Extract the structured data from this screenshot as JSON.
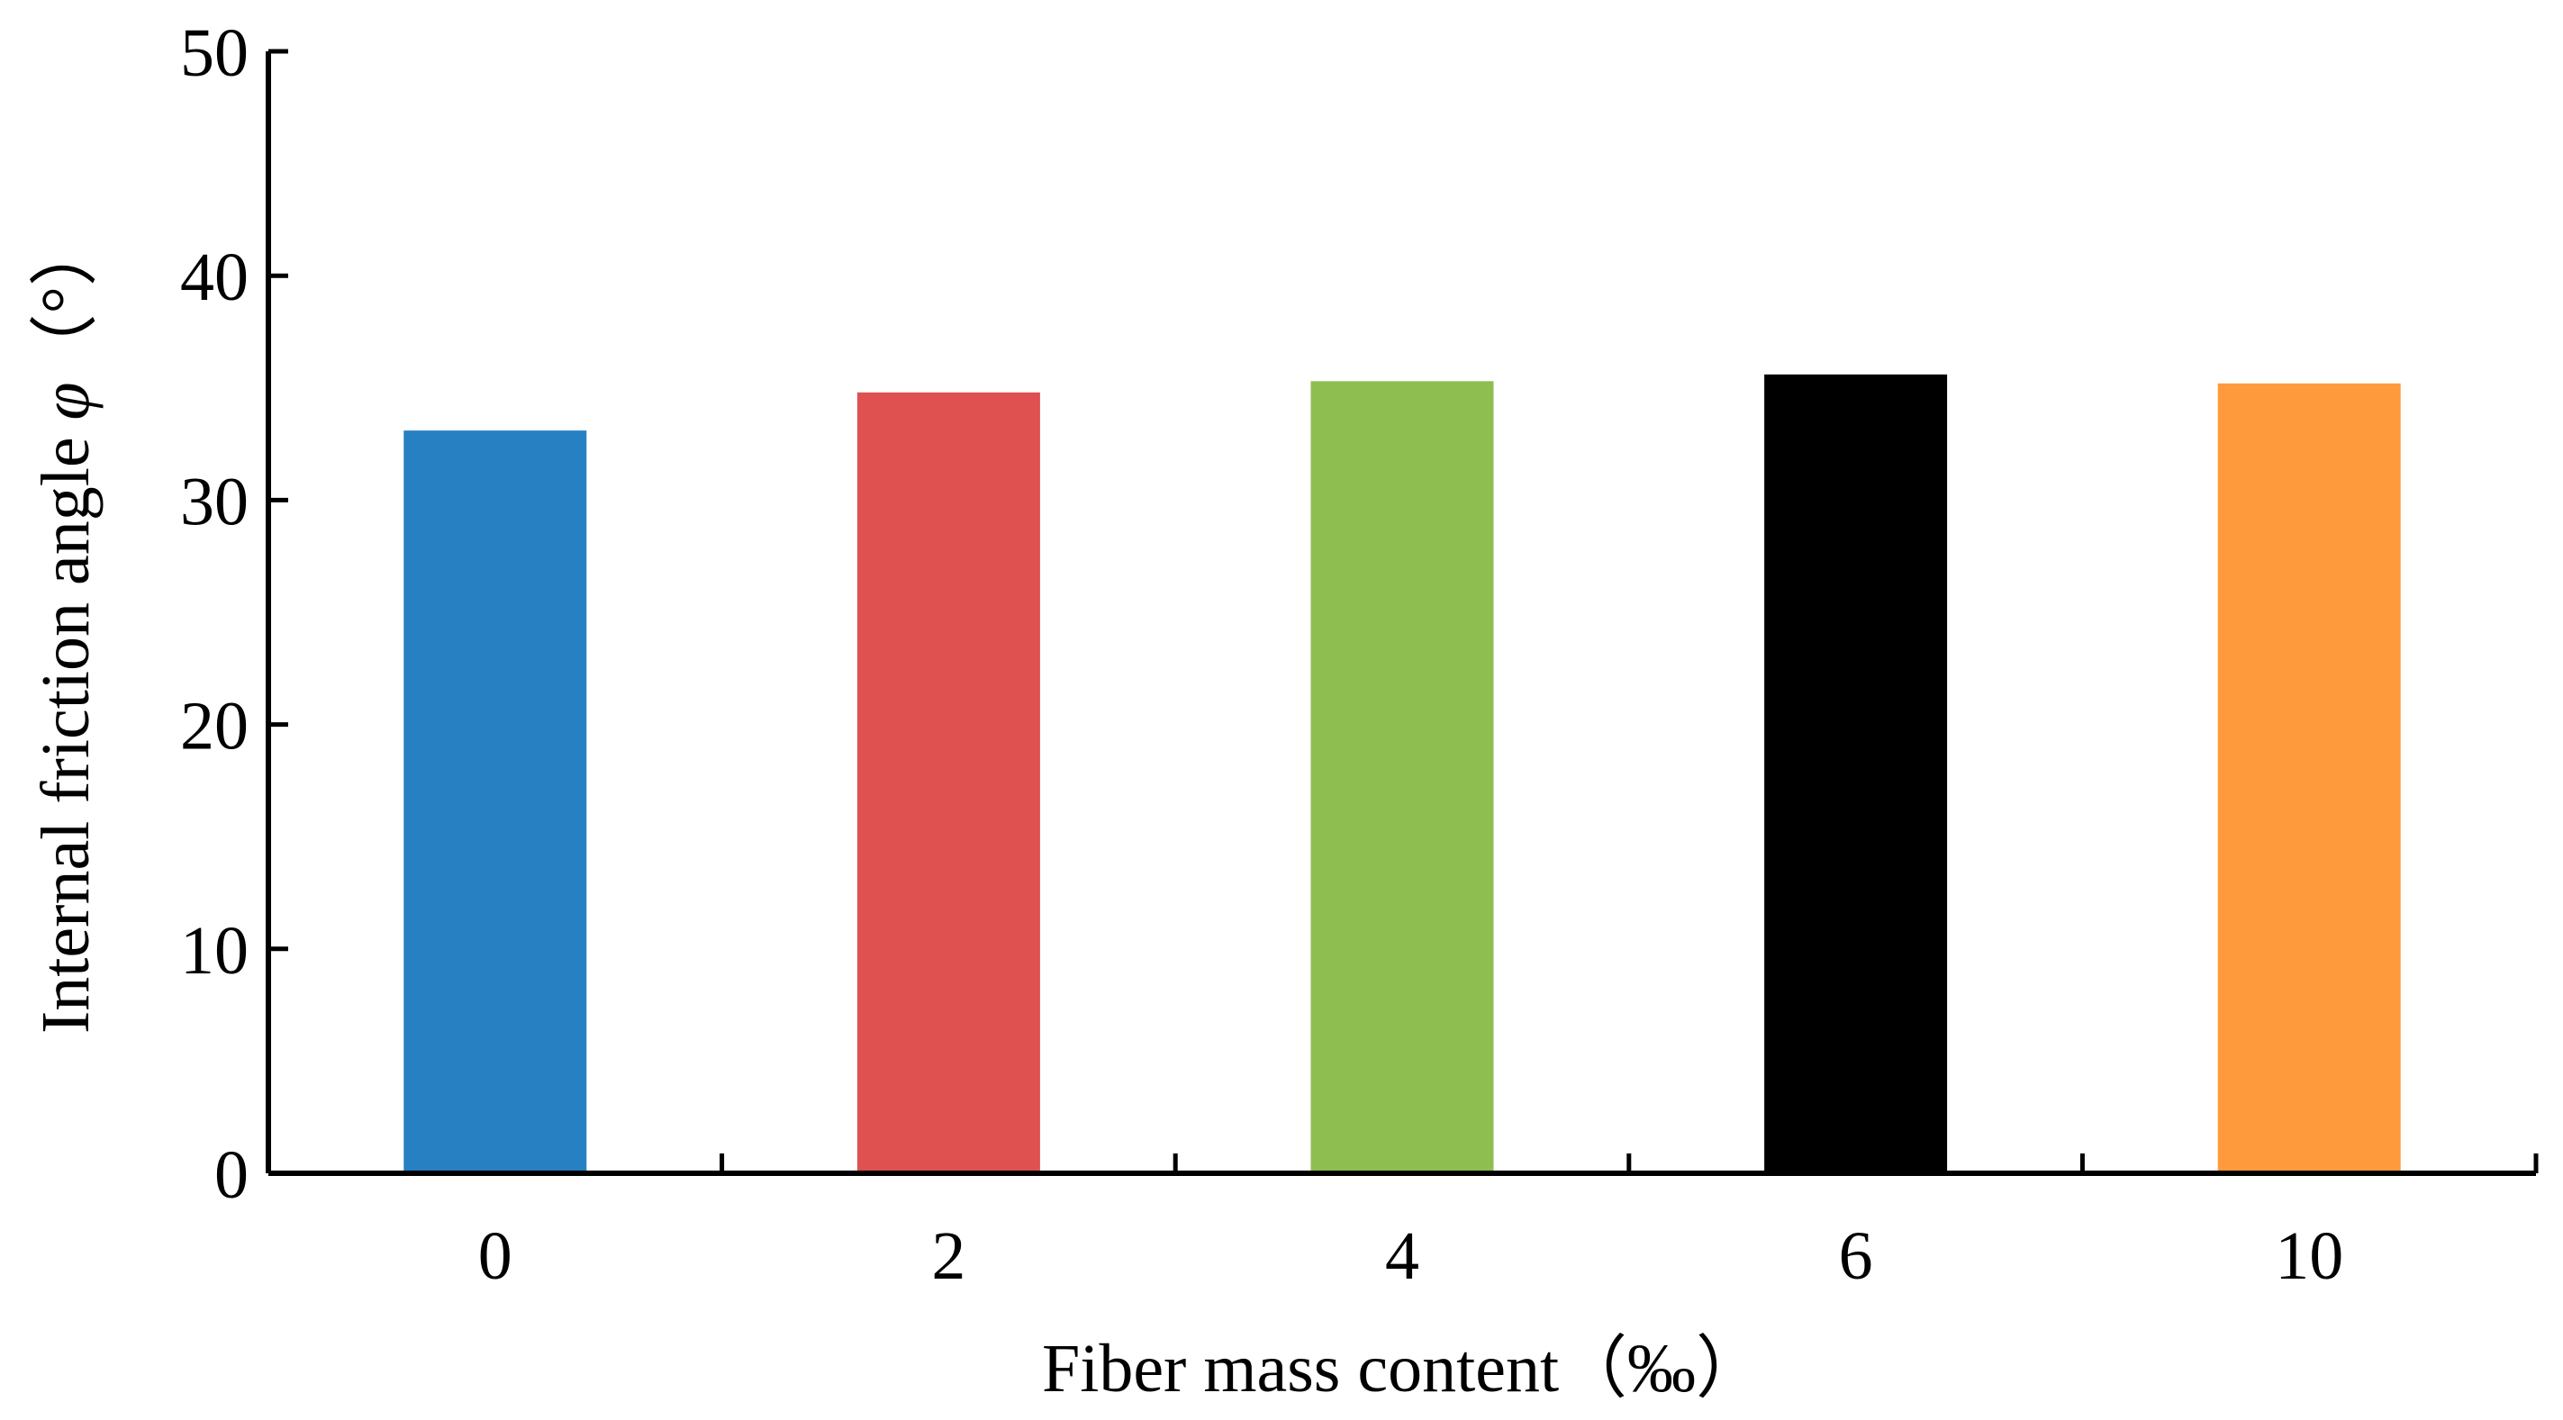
{
  "chart_data": {
    "type": "bar",
    "title": "",
    "xlabel": "Fiber mass content（‰）",
    "ylabel": "Internal friction angle φ（°）",
    "ylabel_parts": {
      "text": "Internal friction angle ",
      "symbol": "φ",
      "unit": "（°）"
    },
    "categories": [
      "0",
      "2",
      "4",
      "6",
      "10"
    ],
    "values": [
      33.1,
      34.8,
      35.3,
      35.6,
      35.2
    ],
    "colors": [
      "#2680C2",
      "#DE5150",
      "#8EBE50",
      "#000000",
      "#FF9A3C"
    ],
    "ylim": [
      0,
      50
    ],
    "yticks": [
      "0",
      "10",
      "20",
      "30",
      "40",
      "50"
    ],
    "grid": false,
    "legend": "none"
  }
}
